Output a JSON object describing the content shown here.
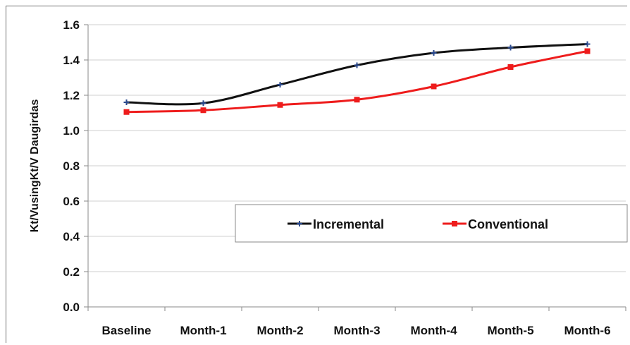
{
  "chart_data": {
    "type": "line",
    "title": "",
    "xlabel": "",
    "ylabel": "Kt/VusingKt/V Daugirdas",
    "categories": [
      "Baseline",
      "Month-1",
      "Month-2",
      "Month-3",
      "Month-4",
      "Month-5",
      "Month-6"
    ],
    "ylim": [
      0,
      1.6
    ],
    "yticks": [
      "0.0",
      "0.2",
      "0.4",
      "0.6",
      "0.8",
      "1.0",
      "1.2",
      "1.4",
      "1.6"
    ],
    "grid": true,
    "legend_position": "center-right",
    "series": [
      {
        "name": "Incremental",
        "color": "#111111",
        "marker": "plus",
        "values": [
          1.16,
          1.155,
          1.26,
          1.37,
          1.44,
          1.47,
          1.49
        ]
      },
      {
        "name": "Conventional",
        "color": "#ee1c1c",
        "marker": "square",
        "values": [
          1.105,
          1.115,
          1.145,
          1.175,
          1.25,
          1.36,
          1.45
        ]
      }
    ]
  }
}
